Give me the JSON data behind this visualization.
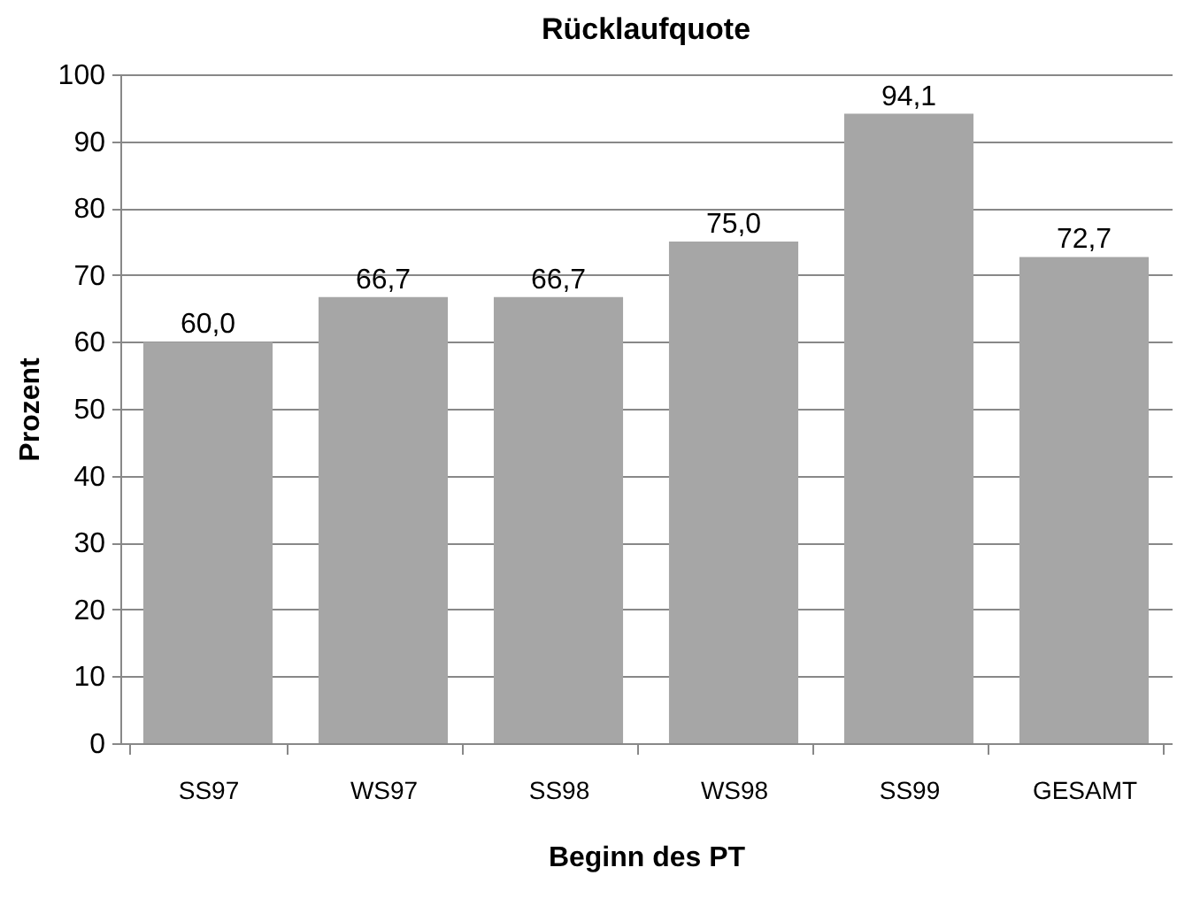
{
  "chart_data": {
    "type": "bar",
    "title": "Rücklaufquote",
    "xlabel": "Beginn des PT",
    "ylabel": "Prozent",
    "categories": [
      "SS97",
      "WS97",
      "SS98",
      "WS98",
      "SS99",
      "GESAMT"
    ],
    "values": [
      60.0,
      66.7,
      66.7,
      75.0,
      94.1,
      72.7
    ],
    "value_labels": [
      "60,0",
      "66,7",
      "66,7",
      "75,0",
      "94,1",
      "72,7"
    ],
    "color": "#a6a6a6",
    "ylim": [
      0,
      100
    ],
    "yticks": [
      0,
      10,
      20,
      30,
      40,
      50,
      60,
      70,
      80,
      90,
      100
    ],
    "grid": "y"
  }
}
